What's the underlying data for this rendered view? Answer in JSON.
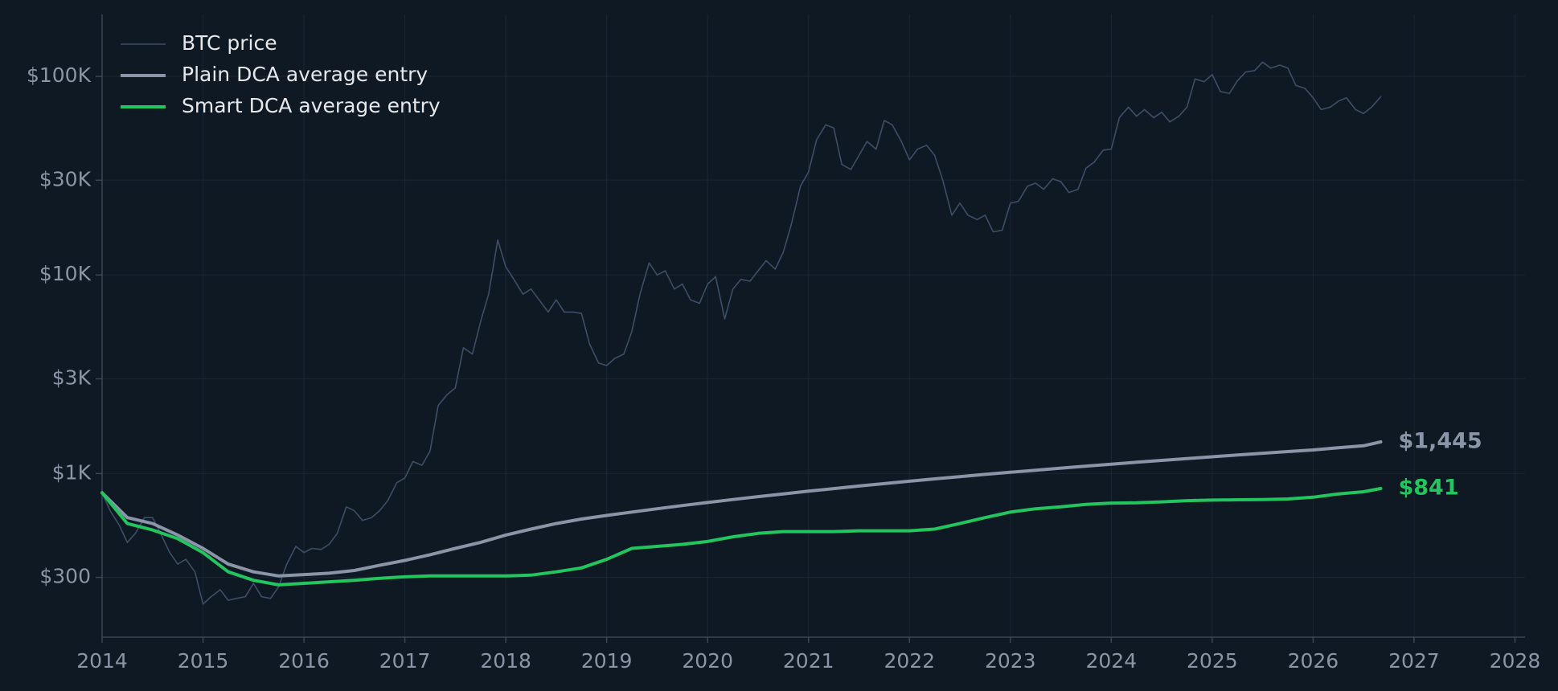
{
  "chart_data": {
    "type": "line",
    "log_y": true,
    "grid": true,
    "legend": "upper-left",
    "xlim": [
      2014,
      2028.1
    ],
    "xticks": [
      2014,
      2015,
      2016,
      2017,
      2018,
      2019,
      2020,
      2021,
      2022,
      2023,
      2024,
      2025,
      2026,
      2027,
      2028
    ],
    "ylim": [
      150,
      205000
    ],
    "yticks": [
      {
        "value": 300,
        "label": "$300"
      },
      {
        "value": 1000,
        "label": "$1K"
      },
      {
        "value": 3000,
        "label": "$3K"
      },
      {
        "value": 10000,
        "label": "$10K"
      },
      {
        "value": 30000,
        "label": "$30K"
      },
      {
        "value": 100000,
        "label": "$100K"
      }
    ],
    "series": [
      {
        "name": "BTC price",
        "color": "#3d4e66",
        "linewidth": 1.6,
        "x": [
          2014.0,
          2014.08,
          2014.17,
          2014.25,
          2014.33,
          2014.42,
          2014.5,
          2014.58,
          2014.67,
          2014.75,
          2014.83,
          2014.92,
          2015.0,
          2015.08,
          2015.17,
          2015.25,
          2015.33,
          2015.42,
          2015.5,
          2015.58,
          2015.67,
          2015.75,
          2015.83,
          2015.92,
          2016.0,
          2016.08,
          2016.17,
          2016.25,
          2016.33,
          2016.42,
          2016.5,
          2016.58,
          2016.67,
          2016.75,
          2016.83,
          2016.92,
          2017.0,
          2017.08,
          2017.17,
          2017.25,
          2017.33,
          2017.42,
          2017.5,
          2017.58,
          2017.67,
          2017.75,
          2017.83,
          2017.92,
          2018.0,
          2018.08,
          2018.17,
          2018.25,
          2018.33,
          2018.42,
          2018.5,
          2018.58,
          2018.67,
          2018.75,
          2018.83,
          2018.92,
          2019.0,
          2019.08,
          2019.17,
          2019.25,
          2019.33,
          2019.42,
          2019.5,
          2019.58,
          2019.67,
          2019.75,
          2019.83,
          2019.92,
          2020.0,
          2020.08,
          2020.17,
          2020.25,
          2020.33,
          2020.42,
          2020.5,
          2020.58,
          2020.67,
          2020.75,
          2020.83,
          2020.92,
          2021.0,
          2021.08,
          2021.17,
          2021.25,
          2021.33,
          2021.42,
          2021.5,
          2021.58,
          2021.67,
          2021.75,
          2021.83,
          2021.92,
          2022.0,
          2022.08,
          2022.17,
          2022.25,
          2022.33,
          2022.42,
          2022.5,
          2022.58,
          2022.67,
          2022.75,
          2022.83,
          2022.92,
          2023.0,
          2023.08,
          2023.17,
          2023.25,
          2023.33,
          2023.42,
          2023.5,
          2023.58,
          2023.67,
          2023.75,
          2023.83,
          2023.92,
          2024.0,
          2024.08,
          2024.17,
          2024.25,
          2024.33,
          2024.42,
          2024.5,
          2024.58,
          2024.67,
          2024.75,
          2024.83,
          2024.92,
          2025.0,
          2025.08,
          2025.17,
          2025.25,
          2025.33,
          2025.42,
          2025.5,
          2025.58,
          2025.67,
          2025.75,
          2025.83,
          2025.92,
          2026.0,
          2026.08,
          2026.17,
          2026.25,
          2026.33,
          2026.42,
          2026.5,
          2026.58,
          2026.67
        ],
        "values": [
          800,
          650,
          550,
          450,
          500,
          600,
          600,
          500,
          400,
          350,
          370,
          320,
          220,
          240,
          260,
          230,
          235,
          240,
          280,
          240,
          235,
          270,
          350,
          430,
          400,
          420,
          415,
          440,
          500,
          680,
          650,
          580,
          600,
          650,
          730,
          900,
          950,
          1150,
          1100,
          1300,
          2200,
          2500,
          2700,
          4300,
          4000,
          5800,
          8000,
          15000,
          11000,
          9500,
          8000,
          8500,
          7500,
          6500,
          7500,
          6500,
          6500,
          6400,
          4500,
          3600,
          3500,
          3800,
          4000,
          5200,
          8000,
          11500,
          10000,
          10500,
          8500,
          9000,
          7500,
          7200,
          9000,
          9800,
          6000,
          8500,
          9500,
          9300,
          10500,
          11800,
          10700,
          13000,
          18000,
          28000,
          33000,
          48000,
          57000,
          55000,
          36000,
          34000,
          40000,
          47000,
          43000,
          60000,
          57000,
          47000,
          38000,
          43000,
          45000,
          40000,
          30000,
          20000,
          23000,
          20000,
          19000,
          20000,
          16500,
          16800,
          23000,
          23500,
          28000,
          29000,
          27000,
          30500,
          29500,
          26000,
          27000,
          34500,
          37000,
          42500,
          43000,
          62000,
          70000,
          63000,
          68000,
          62000,
          66000,
          59000,
          63000,
          70000,
          97000,
          94000,
          102000,
          84000,
          82000,
          95000,
          105000,
          107000,
          118000,
          110000,
          114000,
          110000,
          90000,
          87000,
          78000,
          68000,
          70000,
          75000,
          78000,
          68000,
          65000,
          70000,
          79000
        ]
      },
      {
        "name": "Plain DCA average entry",
        "color": "#8a96a8",
        "linewidth": 4,
        "end_label": "$1,445",
        "x": [
          2014,
          2014.25,
          2014.5,
          2014.75,
          2015,
          2015.25,
          2015.5,
          2015.75,
          2016,
          2016.25,
          2016.5,
          2016.75,
          2017,
          2017.25,
          2017.5,
          2017.75,
          2018,
          2018.25,
          2018.5,
          2018.75,
          2019,
          2019.25,
          2019.5,
          2019.75,
          2020,
          2020.25,
          2020.5,
          2020.75,
          2021,
          2021.25,
          2021.5,
          2021.75,
          2022,
          2022.25,
          2022.5,
          2022.75,
          2023,
          2023.25,
          2023.5,
          2023.75,
          2024,
          2024.25,
          2024.5,
          2024.75,
          2025,
          2025.25,
          2025.5,
          2025.75,
          2026,
          2026.25,
          2026.5,
          2026.67
        ],
        "values": [
          800,
          600,
          560,
          490,
          420,
          350,
          320,
          305,
          310,
          315,
          325,
          345,
          365,
          390,
          420,
          450,
          490,
          525,
          560,
          590,
          615,
          640,
          665,
          690,
          715,
          740,
          765,
          790,
          815,
          840,
          865,
          890,
          915,
          940,
          965,
          990,
          1015,
          1040,
          1065,
          1090,
          1115,
          1140,
          1165,
          1190,
          1215,
          1240,
          1265,
          1290,
          1315,
          1350,
          1380,
          1445
        ]
      },
      {
        "name": "Smart DCA average entry",
        "color": "#22c55e",
        "linewidth": 4,
        "end_label": "$841",
        "x": [
          2014,
          2014.25,
          2014.5,
          2014.75,
          2015,
          2015.25,
          2015.5,
          2015.75,
          2016,
          2016.25,
          2016.5,
          2016.75,
          2017,
          2017.25,
          2017.5,
          2017.75,
          2018,
          2018.25,
          2018.5,
          2018.75,
          2019,
          2019.25,
          2019.5,
          2019.75,
          2020,
          2020.25,
          2020.5,
          2020.75,
          2021,
          2021.25,
          2021.5,
          2021.75,
          2022,
          2022.25,
          2022.5,
          2022.75,
          2023,
          2023.25,
          2023.5,
          2023.75,
          2024,
          2024.25,
          2024.5,
          2024.75,
          2025,
          2025.25,
          2025.5,
          2025.75,
          2026,
          2026.25,
          2026.5,
          2026.67
        ],
        "values": [
          800,
          560,
          520,
          470,
          400,
          320,
          290,
          275,
          280,
          285,
          290,
          297,
          302,
          305,
          305,
          305,
          305,
          308,
          320,
          335,
          370,
          420,
          430,
          440,
          455,
          480,
          500,
          510,
          510,
          510,
          515,
          515,
          515,
          525,
          560,
          600,
          640,
          665,
          680,
          700,
          710,
          712,
          720,
          730,
          735,
          738,
          740,
          745,
          760,
          790,
          810,
          841
        ]
      }
    ]
  }
}
